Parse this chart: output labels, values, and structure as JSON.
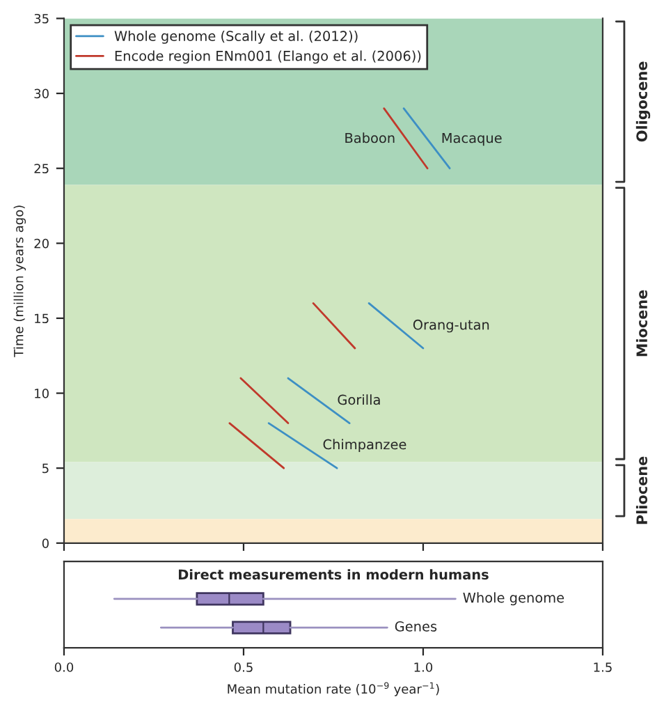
{
  "chart_data": [
    {
      "type": "line",
      "ylabel": "Time (million years ago)",
      "xlim": [
        0,
        1.5
      ],
      "xticks": [
        {
          "value": 0,
          "label": null
        },
        {
          "value": 0.5,
          "label": null
        },
        {
          "value": 1.0,
          "label": null
        },
        {
          "value": 1.5,
          "label": null
        }
      ],
      "ylim": [
        0,
        35
      ],
      "yticks": [
        0,
        5,
        10,
        15,
        20,
        25,
        30,
        35
      ],
      "tick_labels": "y",
      "grid": false,
      "legend": "top left",
      "marker": "none",
      "line_style": "solid",
      "series": [
        {
          "name": "Whole genome (Scally et al. (2012))",
          "color": "#3d8fc4",
          "x": [
            0.946,
            1.074
          ],
          "values": [
            29,
            25
          ]
        },
        {
          "name": "Encode region ENm001 (Elango et al. (2006))",
          "color": "#c0392b",
          "x": [
            0.891,
            1.012
          ],
          "values": [
            29,
            25
          ]
        },
        {
          "color": "#3d8fc4",
          "x": [
            0.849,
            1.0
          ],
          "values": [
            16,
            13
          ]
        },
        {
          "color": "#c0392b",
          "x": [
            0.694,
            0.81
          ],
          "values": [
            16,
            13
          ]
        },
        {
          "color": "#3d8fc4",
          "x": [
            0.624,
            0.795
          ],
          "values": [
            11,
            8
          ]
        },
        {
          "color": "#c0392b",
          "x": [
            0.492,
            0.624
          ],
          "values": [
            11,
            8
          ]
        },
        {
          "color": "#3d8fc4",
          "x": [
            0.57,
            0.76
          ],
          "values": [
            8,
            5
          ]
        },
        {
          "color": "#c0392b",
          "x": [
            0.461,
            0.612
          ],
          "values": [
            8,
            5
          ]
        }
      ],
      "bands": [
        {
          "axis": "y",
          "from": 23.9,
          "to": 35,
          "label": "Oligocene",
          "color": "#a9d6b9"
        },
        {
          "axis": "y",
          "from": 5.4,
          "to": 23.9,
          "label": "Miocene",
          "color": "#cfe6c0"
        },
        {
          "axis": "y",
          "from": 1.6,
          "to": 5.4,
          "label": "Pliocene",
          "color": "#ddeedb"
        },
        {
          "axis": "y",
          "from": 0,
          "to": 1.6,
          "color": "#fcebcd"
        }
      ],
      "annotations": [
        "Baboon",
        "Macaque",
        "Orang-utan",
        "Gorilla",
        "Chimpanzee"
      ]
    },
    {
      "type": "box",
      "orientation": "horizontal",
      "title": "Direct measurements in modern humans",
      "xlabel": "Mean mutation rate (10$^{−9}$ year$^{−1}$)",
      "xlim": [
        0,
        1.5
      ],
      "xticks": [
        {
          "value": 0,
          "label": "0.0"
        },
        {
          "value": 0.5,
          "label": "0.5"
        },
        {
          "value": 1.0,
          "label": "1.0"
        },
        {
          "value": 1.5,
          "label": "1.5"
        }
      ],
      "categories": [
        "Whole genome",
        "Genes"
      ],
      "colors": [
        "#9b8ac6",
        "#9b8ac6"
      ],
      "boxes": [
        {
          "low": 0.14,
          "q1": 0.37,
          "median": 0.46,
          "q3": 0.555,
          "high": 1.09
        },
        {
          "low": 0.27,
          "q1": 0.47,
          "median": 0.555,
          "q3": 0.63,
          "high": 0.9
        }
      ]
    }
  ]
}
